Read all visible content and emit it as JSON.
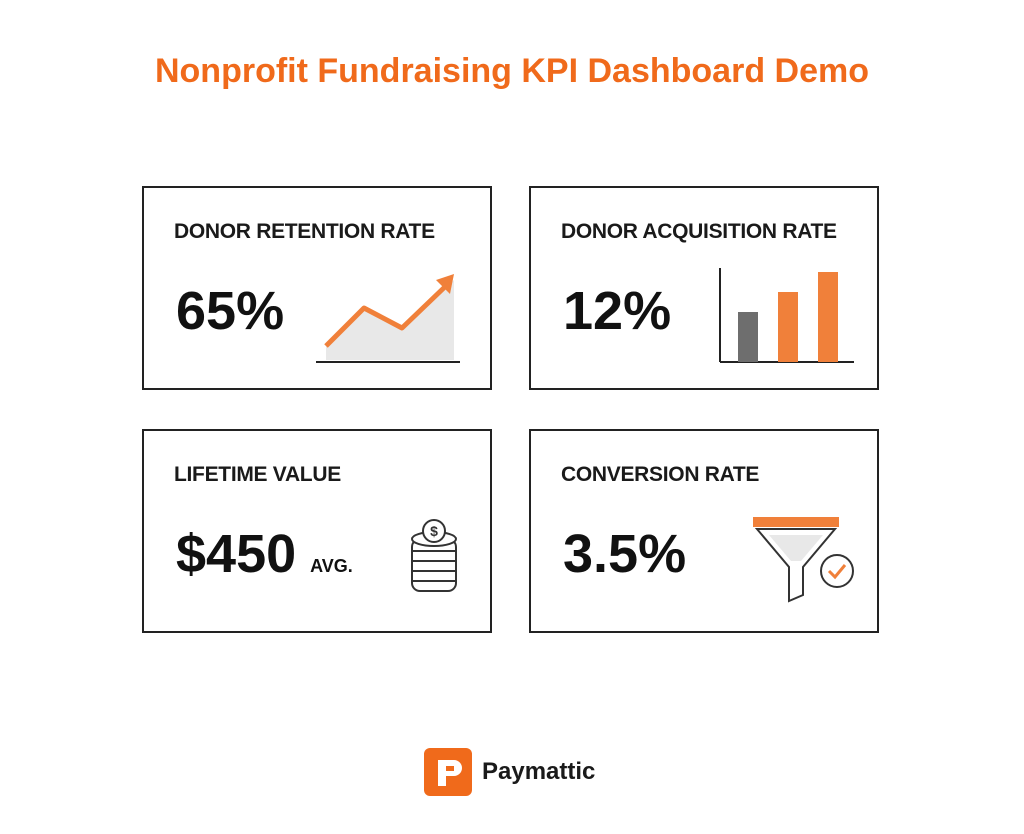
{
  "header": {
    "title": "Nonprofit Fundraising KPI Dashboard Demo"
  },
  "cards": [
    {
      "label": "DONOR RETENTION RATE",
      "value": "65%"
    },
    {
      "label": "DONOR ACQUISITION RATE",
      "value": "12%"
    },
    {
      "label": "LIFETIME VALUE",
      "value": "$450",
      "suffix": "AVG."
    },
    {
      "label": "CONVERSION RATE",
      "value": "3.5%"
    }
  ],
  "footer": {
    "brand": "Paymattic"
  }
}
